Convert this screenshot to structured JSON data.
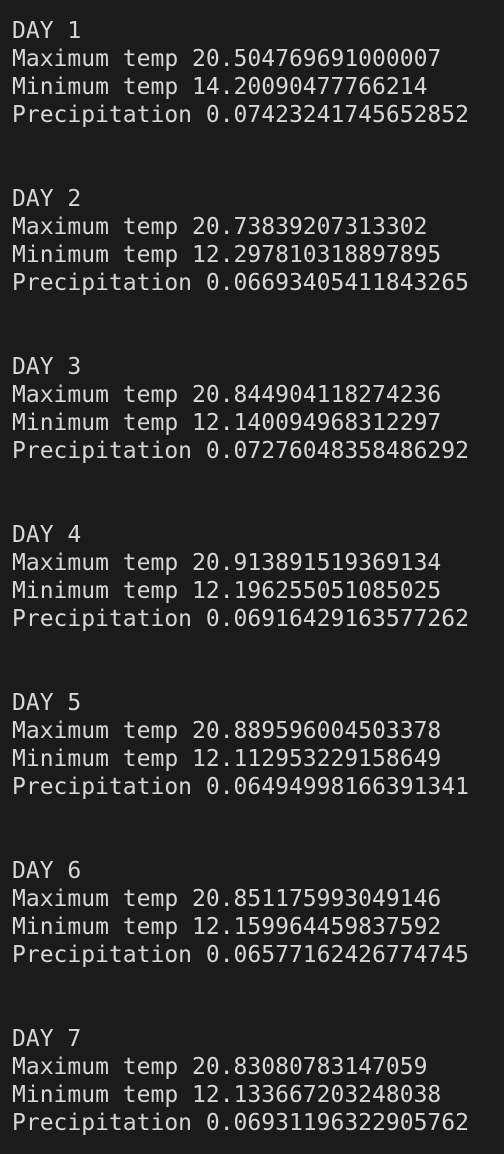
{
  "days": [
    {
      "title": "DAY 1",
      "lines": [
        "Maximum temp 20.504769691000007",
        "Minimum temp 14.20090477766214",
        "Precipitation 0.07423241745652852"
      ]
    },
    {
      "title": "DAY 2",
      "lines": [
        "Maximum temp 20.73839207313302",
        "Minimum temp 12.297810318897895",
        "Precipitation 0.06693405411843265"
      ]
    },
    {
      "title": "DAY 3",
      "lines": [
        "Maximum temp 20.844904118274236",
        "Minimum temp 12.140094968312297",
        "Precipitation 0.07276048358486292"
      ]
    },
    {
      "title": "DAY 4",
      "lines": [
        "Maximum temp 20.913891519369134",
        "Minimum temp 12.196255051085025",
        "Precipitation 0.06916429163577262"
      ]
    },
    {
      "title": "DAY 5",
      "lines": [
        "Maximum temp 20.889596004503378",
        "Minimum temp 12.112953229158649",
        "Precipitation 0.06494998166391341"
      ]
    },
    {
      "title": "DAY 6",
      "lines": [
        "Maximum temp 20.851175993049146",
        "Minimum temp 12.159964459837592",
        "Precipitation 0.06577162426774745"
      ]
    },
    {
      "title": "DAY 7",
      "lines": [
        "Maximum temp 20.83080783147059",
        "Minimum temp 12.133667203248038",
        "Precipitation 0.06931196322905762"
      ]
    }
  ]
}
